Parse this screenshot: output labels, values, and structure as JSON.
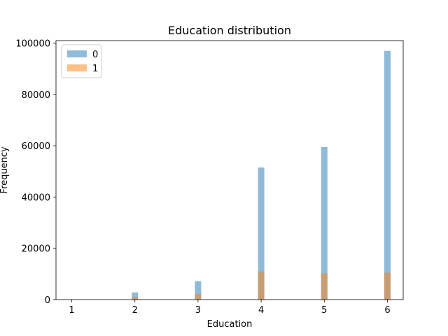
{
  "chart_data": {
    "type": "bar",
    "title": "Education distribution",
    "xlabel": "Education",
    "ylabel": "Frequency",
    "xlim": [
      0.75,
      6.25
    ],
    "ylim": [
      0,
      101000
    ],
    "x_ticks": [
      1,
      2,
      3,
      4,
      5,
      6
    ],
    "y_ticks": [
      0,
      20000,
      40000,
      60000,
      80000,
      100000
    ],
    "bin_width": 0.1,
    "legend_position": "top-left",
    "series": [
      {
        "name": "0",
        "color": "#1f77b4",
        "opacity": 0.5,
        "x": [
          1,
          2,
          3,
          4,
          5,
          6
        ],
        "values": [
          100,
          2800,
          7200,
          51500,
          59500,
          97000
        ]
      },
      {
        "name": "1",
        "color": "#ff7f0e",
        "opacity": 0.5,
        "x": [
          1,
          2,
          3,
          4,
          5,
          6
        ],
        "values": [
          50,
          1000,
          2200,
          11000,
          10200,
          10500
        ]
      }
    ]
  }
}
